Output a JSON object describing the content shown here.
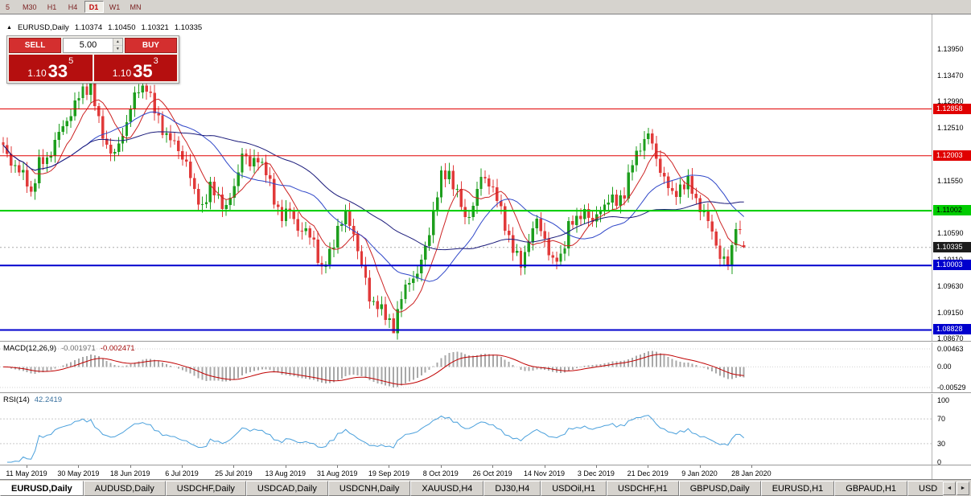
{
  "window": {
    "background": "#d6d3ce"
  },
  "toolbar": {
    "timeframes": [
      {
        "label": "5",
        "active": false
      },
      {
        "label": "M30",
        "active": false
      },
      {
        "label": "H1",
        "active": false
      },
      {
        "label": "H4",
        "active": false
      },
      {
        "label": "D1",
        "active": true
      },
      {
        "label": "W1",
        "active": false
      },
      {
        "label": "MN",
        "active": false
      }
    ]
  },
  "chart_header": {
    "icon": "▲",
    "symbol": "EURUSD,Daily",
    "open": "1.10374",
    "high": "1.10450",
    "low": "1.10321",
    "close": "1.10335"
  },
  "trade_panel": {
    "sell_label": "SELL",
    "buy_label": "BUY",
    "volume": "5.00",
    "spinner_up_icon": "▲",
    "spinner_down_icon": "▼",
    "sell_price": {
      "prefix": "1.10",
      "big": "33",
      "sup": "5"
    },
    "buy_price": {
      "prefix": "1.10",
      "big": "35",
      "sup": "3"
    }
  },
  "price_axis": {
    "ticks": [
      "1.13950",
      "1.13470",
      "1.12990",
      "1.12510",
      "1.11550",
      "1.10590",
      "1.10110",
      "1.09630",
      "1.09150",
      "1.08670"
    ]
  },
  "indicators": {
    "macd": {
      "label": "MACD(12,26,9)",
      "value_main": "-0.001971",
      "value_signal": "-0.002471",
      "axis_labels": [
        "0.00463",
        "0.00",
        "-0.00529"
      ]
    },
    "rsi": {
      "label": "RSI(14)",
      "value": "42.2419",
      "axis_labels": [
        "100",
        "70",
        "30",
        "0"
      ],
      "levels": [
        70,
        30
      ]
    }
  },
  "date_axis": [
    "11 May 2019",
    "30 May 2019",
    "18 Jun 2019",
    "6 Jul 2019",
    "25 Jul 2019",
    "13 Aug 2019",
    "31 Aug 2019",
    "19 Sep 2019",
    "8 Oct 2019",
    "26 Oct 2019",
    "14 Nov 2019",
    "3 Dec 2019",
    "21 Dec 2019",
    "9 Jan 2020",
    "28 Jan 2020"
  ],
  "tabs": {
    "active_index": 0,
    "items": [
      "EURUSD,Daily",
      "AUDUSD,Daily",
      "USDCHF,Daily",
      "USDCAD,Daily",
      "USDCNH,Daily",
      "XAUUSD,H4",
      "DJ30,H4",
      "USDOil,H1",
      "USDCHF,H1",
      "GBPUSD,Daily",
      "EURUSD,H1",
      "GBPAUD,H1",
      "USD"
    ],
    "scroll_left_icon": "◄",
    "scroll_right_icon": "►"
  },
  "chart_data": {
    "type": "candlestick",
    "symbol": "EURUSD",
    "timeframe": "Daily",
    "candle_count": 187,
    "first_open": 1.1225,
    "y_min": 1.0863,
    "y_max": 1.1458,
    "last_candle": {
      "open": 1.10374,
      "high": 1.1045,
      "low": 1.10321,
      "close": 1.10335
    },
    "low_override": {
      "index": 98,
      "low": 1.0885
    },
    "colors": {
      "up": "#1d9e1d",
      "down": "#e13a3a"
    },
    "close_keypoints": [
      [
        0,
        1.1215
      ],
      [
        3,
        1.118
      ],
      [
        6,
        1.1155
      ],
      [
        7,
        1.1132
      ],
      [
        9,
        1.1185
      ],
      [
        11,
        1.1195
      ],
      [
        14,
        1.124
      ],
      [
        17,
        1.128
      ],
      [
        20,
        1.132
      ],
      [
        22,
        1.133
      ],
      [
        24,
        1.126
      ],
      [
        26,
        1.122
      ],
      [
        28,
        1.12
      ],
      [
        30,
        1.124
      ],
      [
        32,
        1.129
      ],
      [
        34,
        1.132
      ],
      [
        36,
        1.133
      ],
      [
        38,
        1.128
      ],
      [
        40,
        1.125
      ],
      [
        43,
        1.122
      ],
      [
        46,
        1.119
      ],
      [
        48,
        1.113
      ],
      [
        50,
        1.111
      ],
      [
        52,
        1.114
      ],
      [
        54,
        1.1125
      ],
      [
        56,
        1.1105
      ],
      [
        58,
        1.114
      ],
      [
        60,
        1.121
      ],
      [
        62,
        1.118
      ],
      [
        64,
        1.12
      ],
      [
        66,
        1.117
      ],
      [
        68,
        1.112
      ],
      [
        70,
        1.109
      ],
      [
        72,
        1.11
      ],
      [
        74,
        1.107
      ],
      [
        76,
        1.106
      ],
      [
        78,
        1.1045
      ],
      [
        80,
        1.099
      ],
      [
        82,
        1.102
      ],
      [
        84,
        1.107
      ],
      [
        86,
        1.109
      ],
      [
        88,
        1.106
      ],
      [
        90,
        1.1
      ],
      [
        92,
        1.094
      ],
      [
        94,
        1.093
      ],
      [
        96,
        1.0905
      ],
      [
        98,
        1.089
      ],
      [
        100,
        1.094
      ],
      [
        102,
        1.0975
      ],
      [
        104,
        1.0985
      ],
      [
        106,
        1.103
      ],
      [
        108,
        1.11
      ],
      [
        110,
        1.116
      ],
      [
        112,
        1.117
      ],
      [
        114,
        1.113
      ],
      [
        116,
        1.1085
      ],
      [
        118,
        1.111
      ],
      [
        120,
        1.116
      ],
      [
        122,
        1.1155
      ],
      [
        124,
        1.112
      ],
      [
        126,
        1.1075
      ],
      [
        128,
        1.103
      ],
      [
        130,
        1.1
      ],
      [
        132,
        1.105
      ],
      [
        134,
        1.108
      ],
      [
        136,
        1.105
      ],
      [
        138,
        1.1005
      ],
      [
        140,
        1.1015
      ],
      [
        142,
        1.1075
      ],
      [
        144,
        1.108
      ],
      [
        146,
        1.1105
      ],
      [
        148,
        1.1075
      ],
      [
        150,
        1.1105
      ],
      [
        152,
        1.112
      ],
      [
        154,
        1.1115
      ],
      [
        156,
        1.1135
      ],
      [
        158,
        1.1185
      ],
      [
        160,
        1.122
      ],
      [
        162,
        1.124
      ],
      [
        164,
        1.1195
      ],
      [
        166,
        1.116
      ],
      [
        168,
        1.1125
      ],
      [
        170,
        1.1145
      ],
      [
        172,
        1.115
      ],
      [
        174,
        1.112
      ],
      [
        176,
        1.1095
      ],
      [
        178,
        1.106
      ],
      [
        180,
        1.102
      ],
      [
        182,
        1.1
      ],
      [
        183,
        1.103
      ],
      [
        184,
        1.108
      ],
      [
        185,
        1.1062
      ],
      [
        186,
        1.10335
      ]
    ],
    "hlines": [
      {
        "price": 1.12858,
        "color": "#e00000",
        "width": 1,
        "label": "1.12858",
        "tag_text": "#ffffff"
      },
      {
        "price": 1.12003,
        "color": "#e00000",
        "width": 1,
        "label": "1.12003",
        "tag_text": "#ffffff"
      },
      {
        "price": 1.11002,
        "color": "#00cc00",
        "width": 2,
        "label": "1.11002",
        "tag_text": "#000000"
      },
      {
        "price": 1.10003,
        "color": "#0000cd",
        "width": 2,
        "label": "1.10003",
        "tag_text": "#ffffff"
      },
      {
        "price": 1.08828,
        "color": "#0000cd",
        "width": 2,
        "label": "1.08828",
        "tag_text": "#ffffff"
      }
    ],
    "current_price": {
      "value": 1.10335,
      "label": "1.10335",
      "tag_bg": "#1c1c1c",
      "tag_text": "#ffffff"
    },
    "moving_averages": [
      {
        "period": 8,
        "color": "#cc2222"
      },
      {
        "period": 21,
        "color": "#2e46c8"
      },
      {
        "period": 45,
        "color": "#1a1a7a"
      }
    ],
    "macd": {
      "fast": 12,
      "slow": 26,
      "signal": 9,
      "hist_color": "#a8a8a8",
      "signal_color": "#c00000"
    },
    "rsi": {
      "period": 14,
      "color": "#4aa0dc"
    }
  }
}
